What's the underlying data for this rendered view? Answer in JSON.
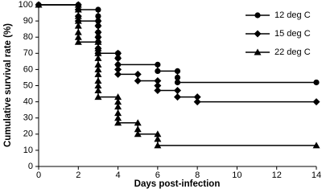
{
  "chart_data": {
    "type": "line",
    "x_label": "Days post-infection",
    "y_label": "Cumulative survival rate (%)",
    "xlim": [
      0,
      14
    ],
    "xticks": [
      0,
      2,
      4,
      6,
      8,
      10,
      12,
      14
    ],
    "ylim": [
      0,
      100
    ],
    "yticks": [
      0,
      10,
      20,
      30,
      40,
      50,
      60,
      70,
      80,
      90,
      100
    ],
    "grid": false,
    "legend_position": "upper right",
    "series": [
      {
        "name": "12 deg C",
        "color": "#000000",
        "marker": "circle",
        "x": [
          0,
          2,
          2,
          3,
          3,
          3,
          3,
          3,
          3,
          3,
          3,
          3,
          4,
          4,
          4,
          6,
          6,
          7,
          7,
          7,
          14
        ],
        "values": [
          100,
          100,
          97,
          97,
          93,
          90,
          87,
          83,
          80,
          77,
          73,
          70,
          70,
          67,
          63,
          63,
          59,
          59,
          55,
          52,
          52
        ]
      },
      {
        "name": "15 deg C",
        "color": "#000000",
        "marker": "diamond",
        "x": [
          0,
          2,
          2,
          2,
          2,
          3,
          3,
          3,
          3,
          3,
          3,
          3,
          4,
          4,
          4,
          4,
          4,
          5,
          5,
          6,
          6,
          6,
          7,
          7,
          8,
          8,
          14
        ],
        "values": [
          100,
          100,
          97,
          93,
          90,
          90,
          87,
          83,
          80,
          77,
          73,
          70,
          70,
          67,
          63,
          60,
          57,
          57,
          53,
          53,
          50,
          47,
          47,
          43,
          43,
          40,
          40
        ]
      },
      {
        "name": "22 deg C",
        "color": "#000000",
        "marker": "triangle",
        "x": [
          0,
          2,
          2,
          2,
          2,
          2,
          2,
          2,
          2,
          3,
          3,
          3,
          3,
          3,
          3,
          3,
          3,
          3,
          3,
          3,
          4,
          4,
          4,
          4,
          4,
          4,
          5,
          5,
          5,
          6,
          6,
          6,
          14
        ],
        "values": [
          100,
          100,
          97,
          93,
          90,
          87,
          83,
          80,
          77,
          77,
          73,
          70,
          67,
          63,
          60,
          57,
          53,
          50,
          47,
          43,
          43,
          40,
          37,
          33,
          30,
          27,
          27,
          23,
          20,
          20,
          17,
          13,
          13
        ]
      }
    ]
  }
}
